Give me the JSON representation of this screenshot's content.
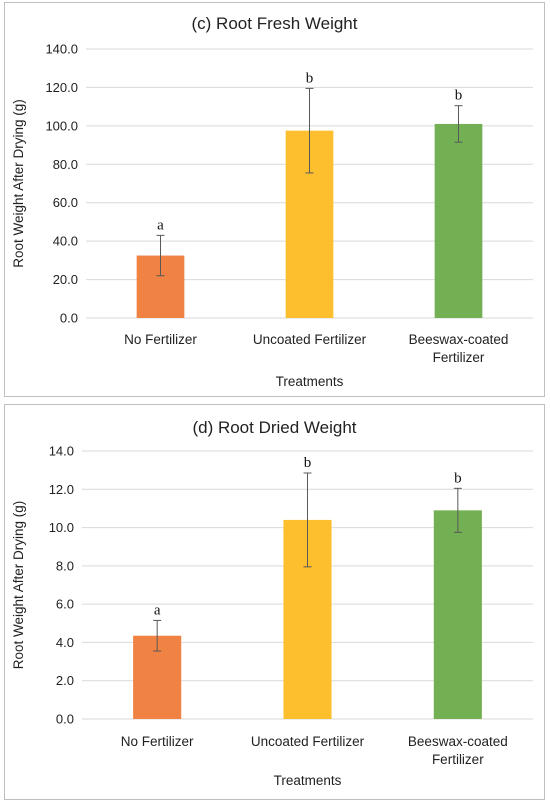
{
  "chart_data": [
    {
      "type": "bar",
      "title": "(c) Root Fresh Weight",
      "xlabel": "Treatments",
      "ylabel": "Root Weight After Drying (g)",
      "ylim": [
        0,
        140
      ],
      "yticks": [
        "0.0",
        "20.0",
        "40.0",
        "60.0",
        "80.0",
        "100.0",
        "120.0",
        "140.0"
      ],
      "grid": true,
      "categories": [
        [
          "No Fertilizer"
        ],
        [
          "Uncoated Fertilizer"
        ],
        [
          "Beeswax-coated",
          "Fertilizer"
        ]
      ],
      "values": [
        32.5,
        97.5,
        101.0
      ],
      "errors": [
        10.5,
        22.0,
        9.5
      ],
      "significance": [
        "a",
        "b",
        "b"
      ],
      "colors": [
        "#f08243",
        "#fdbf2d",
        "#72b053"
      ]
    },
    {
      "type": "bar",
      "title": "(d) Root Dried Weight",
      "xlabel": "Treatments",
      "ylabel": "Root Weight After Drying (g)",
      "ylim": [
        0,
        14
      ],
      "yticks": [
        "0.0",
        "2.0",
        "4.0",
        "6.0",
        "8.0",
        "10.0",
        "12.0",
        "14.0"
      ],
      "grid": true,
      "categories": [
        [
          "No Fertilizer"
        ],
        [
          "Uncoated Fertilizer"
        ],
        [
          "Beeswax-coated",
          "Fertilizer"
        ]
      ],
      "values": [
        4.35,
        10.4,
        10.9
      ],
      "errors": [
        0.8,
        2.45,
        1.15
      ],
      "significance": [
        "a",
        "b",
        "b"
      ],
      "colors": [
        "#f08243",
        "#fdbf2d",
        "#72b053"
      ]
    }
  ]
}
